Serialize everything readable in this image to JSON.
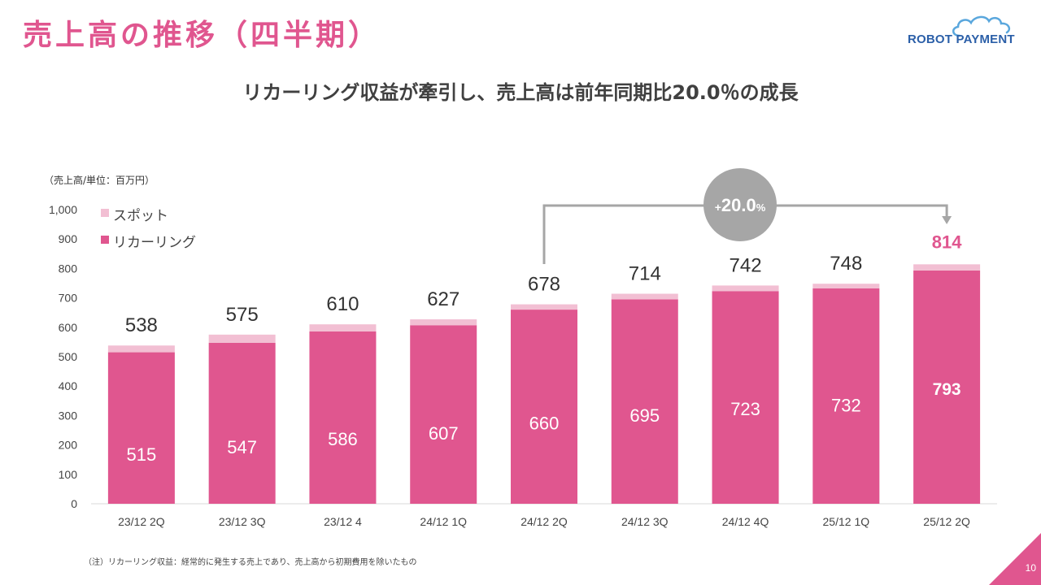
{
  "page": {
    "title": "売上高の推移（四半期）",
    "subtitle": "リカーリング収益が牽引し、売上高は前年同期比20.0％の成長",
    "unit_label": "（売上高/単位：百万円）",
    "footnote": "（注）リカーリング収益：経常的に発生する売上であり、売上高から初期費用を除いたもの",
    "page_number": "10",
    "logo_text": "ROBOT PAYMENT"
  },
  "colors": {
    "recurring": "#e0568f",
    "spot": "#f2bfd3",
    "title": "#e0568f",
    "highlight_text": "#e0568f",
    "growth_circle": "#a6a6a6",
    "logo": "#2b5fa8"
  },
  "chart_data": {
    "type": "bar",
    "stacked": true,
    "categories": [
      "23/12 2Q",
      "23/12 3Q",
      "23/12 4",
      "24/12 1Q",
      "24/12 2Q",
      "24/12 3Q",
      "24/12 4Q",
      "25/12 1Q",
      "25/12 2Q"
    ],
    "series": [
      {
        "name": "リカーリング",
        "values": [
          515,
          547,
          586,
          607,
          660,
          695,
          723,
          732,
          793
        ]
      },
      {
        "name": "スポット",
        "values": [
          23,
          28,
          24,
          20,
          18,
          19,
          19,
          16,
          21
        ]
      }
    ],
    "totals": [
      538,
      575,
      610,
      627,
      678,
      714,
      742,
      748,
      814
    ],
    "recurring_labels": [
      "515",
      "547",
      "586",
      "607",
      "660",
      "695",
      "723",
      "732",
      "793"
    ],
    "total_labels": [
      "538",
      "575",
      "610",
      "627",
      "678",
      "714",
      "742",
      "748",
      "814"
    ],
    "ylim": [
      0,
      1000
    ],
    "yticks": [
      "0",
      "100",
      "200",
      "300",
      "400",
      "500",
      "600",
      "700",
      "800",
      "900",
      "1,000"
    ],
    "ytick_values": [
      0,
      100,
      200,
      300,
      400,
      500,
      600,
      700,
      800,
      900,
      1000
    ],
    "grid": false,
    "legend": {
      "position": "top-left",
      "entries": [
        "スポット",
        "リカーリング"
      ]
    },
    "highlight_index": 8,
    "growth": {
      "from_index": 4,
      "to_index": 8,
      "prefix": "+",
      "value": "20.0",
      "suffix": "%"
    }
  }
}
